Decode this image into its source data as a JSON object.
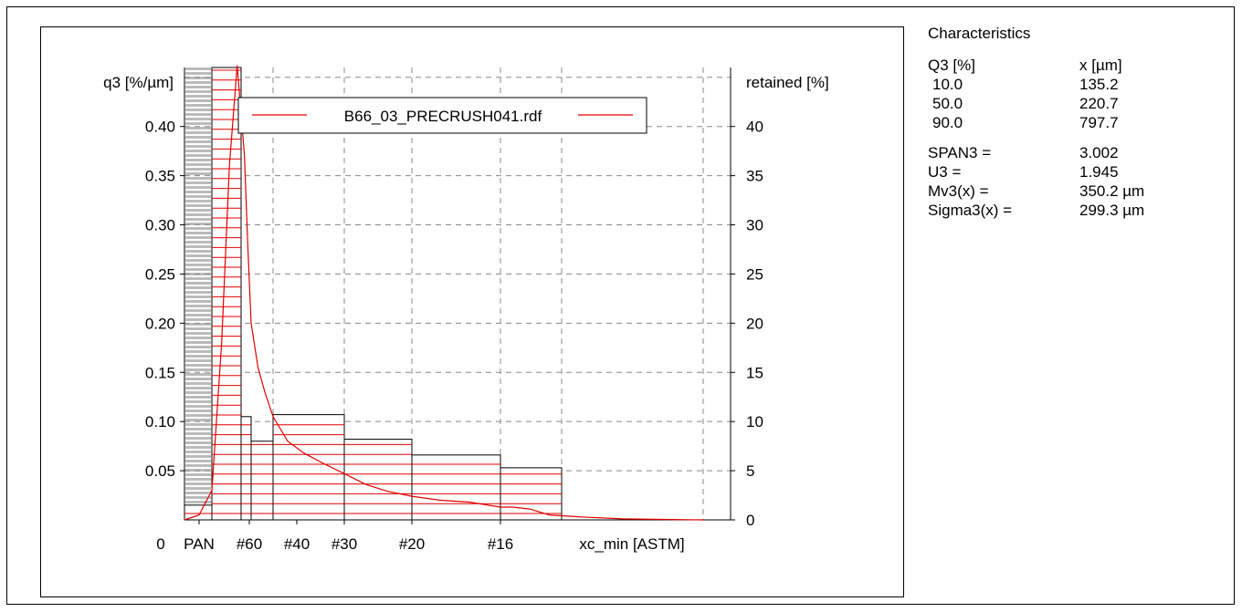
{
  "chart_data": {
    "type": "bar",
    "title": "",
    "xlabel": "xc_min [ASTM]",
    "ylabel_left": "q3 [%/µm]",
    "ylabel_right": "retained [%]",
    "ylim_left": [
      0,
      0.46
    ],
    "ylim_right": [
      0,
      46
    ],
    "y_ticks_left": [
      "0.05",
      "0.10",
      "0.15",
      "0.20",
      "0.25",
      "0.30",
      "0.35",
      "0.40"
    ],
    "y_ticks_right": [
      "0",
      "5",
      "10",
      "15",
      "20",
      "25",
      "30",
      "35",
      "40"
    ],
    "x_ticks": [
      "0",
      "PAN",
      "#60",
      "#40",
      "#30",
      "#20",
      "#16"
    ],
    "grid": true,
    "legend": {
      "position": "top-center",
      "entries": [
        "B66_03_PRECRUSH041.rdf"
      ]
    },
    "series": [
      {
        "name": "B66_03_PRECRUSH041.rdf",
        "kind": "retained-bars",
        "sieves": [
          {
            "from_um": 0,
            "to_um": 75,
            "q3": 0.015
          },
          {
            "from_um": 75,
            "to_um": 150,
            "q3": 0.46
          },
          {
            "from_um": 150,
            "to_um": 180,
            "q3": 0.105
          },
          {
            "from_um": 180,
            "to_um": 212,
            "q3": 0.08
          },
          {
            "from_um": 212,
            "to_um": 300,
            "q3": 0.107
          },
          {
            "from_um": 300,
            "to_um": 425,
            "q3": 0.082
          },
          {
            "from_um": 425,
            "to_um": 600,
            "q3": 0.066
          },
          {
            "from_um": 600,
            "to_um": 850,
            "q3": 0.053
          }
        ]
      },
      {
        "name": "B66_03_PRECRUSH041.rdf",
        "kind": "density-line",
        "x_um": [
          0,
          40,
          75,
          100,
          120,
          140,
          160,
          170,
          180,
          190,
          200,
          212,
          230,
          250,
          275,
          300,
          340,
          380,
          425,
          480,
          540,
          600,
          650,
          720,
          800,
          900,
          1000,
          1100,
          1200
        ],
        "q3": [
          0,
          0.005,
          0.03,
          0.18,
          0.36,
          0.462,
          0.37,
          0.28,
          0.2,
          0.155,
          0.13,
          0.105,
          0.08,
          0.068,
          0.057,
          0.047,
          0.036,
          0.029,
          0.024,
          0.02,
          0.018,
          0.013,
          0.013,
          0.011,
          0.005,
          0.003,
          0.001,
          0.0005,
          0
        ]
      }
    ]
  },
  "characteristics": {
    "title": "Characteristics",
    "col1_header": "Q3 [%]",
    "col2_header": "x [µm]",
    "rows": [
      {
        "q3": "10.0",
        "x": "135.2"
      },
      {
        "q3": "50.0",
        "x": "220.7"
      },
      {
        "q3": "90.0",
        "x": "797.7"
      }
    ],
    "stats": [
      {
        "label": "SPAN3 =",
        "value": "3.002"
      },
      {
        "label": "U3 =",
        "value": "1.945"
      },
      {
        "label": "Mv3(x) =",
        "value": "350.2 µm"
      },
      {
        "label": "Sigma3(x) =",
        "value": "299.3 µm"
      }
    ]
  }
}
